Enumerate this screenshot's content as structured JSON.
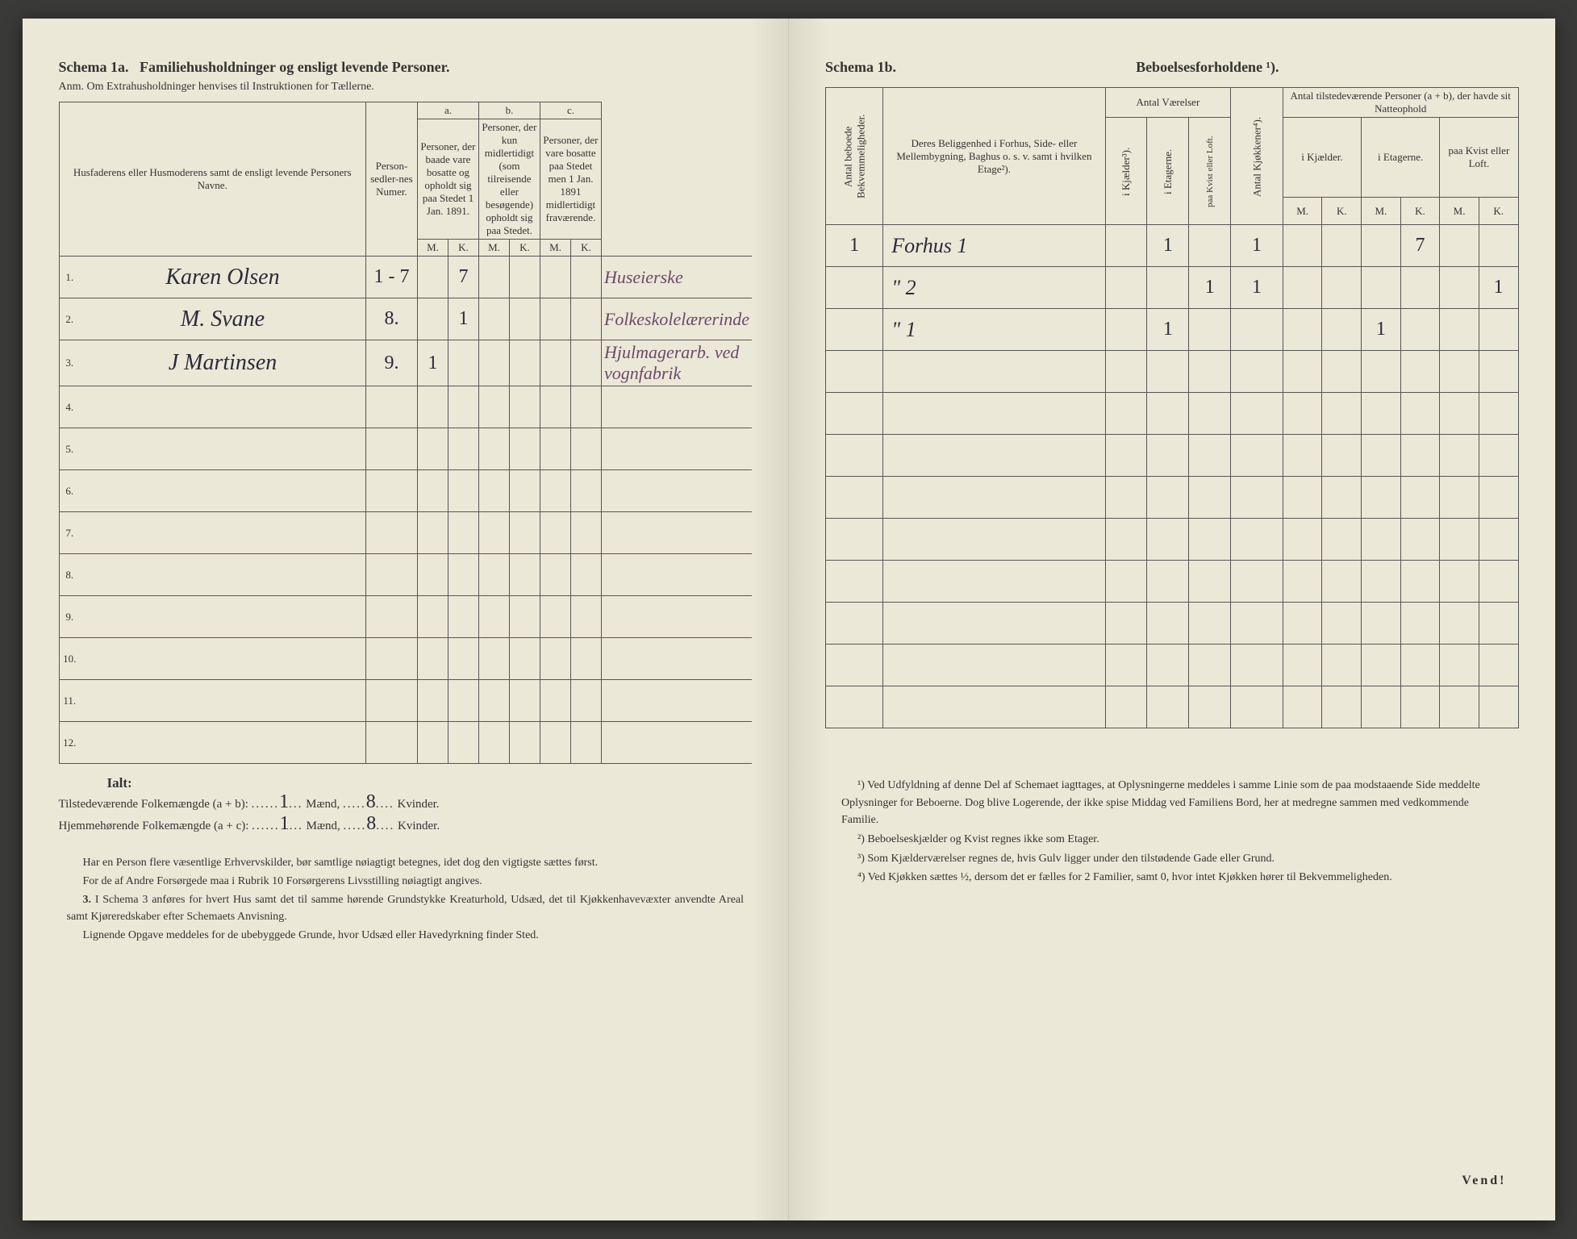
{
  "left": {
    "title_a": "Schema 1a.",
    "title_b": "Familiehusholdninger og ensligt levende Personer.",
    "anm": "Anm. Om Extrahusholdninger henvises til Instruktionen for Tællerne.",
    "col_name": "Husfaderens eller Husmoderens samt de ensligt levende Personers Navne.",
    "col_person": "Person-sedler-nes Numer.",
    "col_a_head": "a.",
    "col_a": "Personer, der baade vare bosatte og opholdt sig paa Stedet 1 Jan. 1891.",
    "col_b_head": "b.",
    "col_b": "Personer, der kun midlertidigt (som tilreisende eller besøgende) opholdt sig paa Stedet.",
    "col_c_head": "c.",
    "col_c": "Personer, der vare bosatte paa Stedet men 1 Jan. 1891 midlertidigt fraværende.",
    "mk_m": "M.",
    "mk_k": "K.",
    "rows": [
      {
        "n": "1.",
        "name": "Karen Olsen",
        "pers": "1 - 7",
        "am": "",
        "ak": "7",
        "bm": "",
        "bk": "",
        "cm": "",
        "ck": "",
        "note": "Huseierske"
      },
      {
        "n": "2.",
        "name": "M. Svane",
        "pers": "8.",
        "am": "",
        "ak": "1",
        "bm": "",
        "bk": "",
        "cm": "",
        "ck": "",
        "note": "Folkeskolelærerinde"
      },
      {
        "n": "3.",
        "name": "J Martinsen",
        "pers": "9.",
        "am": "1",
        "ak": "",
        "bm": "",
        "bk": "",
        "cm": "",
        "ck": "",
        "note": "Hjulmagerarb. ved vognfabrik"
      },
      {
        "n": "4."
      },
      {
        "n": "5."
      },
      {
        "n": "6."
      },
      {
        "n": "7."
      },
      {
        "n": "8."
      },
      {
        "n": "9."
      },
      {
        "n": "10."
      },
      {
        "n": "11."
      },
      {
        "n": "12."
      }
    ],
    "ialt": "Ialt:",
    "tilstede": "Tilstedeværende Folkemængde (a + b): ",
    "hjemme": "Hjemmehørende Folkemængde (a + c): ",
    "maend": "Mænd,",
    "kvinder": "Kvinder.",
    "val_tm": "1",
    "val_tk": "8",
    "val_hm": "1",
    "val_hk": "8",
    "note1": "Har en Person flere væsentlige Erhvervskilder, bør samtlige nøiagtigt betegnes, idet dog den vigtigste sættes først.",
    "note2": "For de af Andre Forsørgede maa i Rubrik 10 Forsørgerens Livsstilling nøiagtigt angives.",
    "note3_label": "3.",
    "note3": "I Schema 3 anføres for hvert Hus samt det til samme hørende Grundstykke Kreaturhold, Udsæd, det til Kjøkkenhavevæxter anvendte Areal samt Kjøreredskaber efter Schemaets Anvisning.",
    "note4": "Lignende Opgave meddeles for de ubebyggede Grunde, hvor Udsæd eller Havedyrkning finder Sted."
  },
  "right": {
    "title": "Schema 1b.",
    "title2": "Beboelsesforholdene ¹).",
    "col_bekv": "Antal beboede Bekvemmeligheder.",
    "col_belig": "Deres Beliggenhed i Forhus, Side- eller Mellembygning, Baghus o. s. v. samt i hvilken Etage²).",
    "col_vaer": "Antal Værelser",
    "col_kj": "i Kjælder³).",
    "col_et": "i Etagerne.",
    "col_kv": "paa Kvist eller Loft.",
    "col_kjok": "Antal Kjøkkener⁴).",
    "col_pers": "Antal tilstedeværende Personer (a + b), der havde sit Natteophold",
    "col_pk": "i Kjælder.",
    "col_pe": "i Etagerne.",
    "col_pkv": "paa Kvist eller Loft.",
    "mk_m": "M.",
    "mk_k": "K.",
    "rows": [
      {
        "bekv": "1",
        "belig": "Forhus   1",
        "kj": "",
        "et": "1",
        "kv": "",
        "kjok": "1",
        "pkm": "",
        "pkk": "",
        "pem": "",
        "pek": "7",
        "pkvm": "",
        "pkvk": ""
      },
      {
        "bekv": "",
        "belig": "\"          2",
        "kj": "",
        "et": "",
        "kv": "1",
        "kjok": "1",
        "pkm": "",
        "pkk": "",
        "pem": "",
        "pek": "",
        "pkvm": "",
        "pkvk": "1"
      },
      {
        "bekv": "",
        "belig": "\"          1",
        "kj": "",
        "et": "1",
        "kv": "",
        "kjok": "",
        "pkm": "",
        "pkk": "",
        "pem": "1",
        "pek": "",
        "pkvm": "",
        "pkvk": ""
      },
      {},
      {},
      {},
      {},
      {},
      {},
      {},
      {},
      {}
    ],
    "fn1": "¹) Ved Udfyldning af denne Del af Schemaet iagttages, at Oplysningerne meddeles i samme Linie som de paa modstaaende Side meddelte Oplysninger for Beboerne. Dog blive Logerende, der ikke spise Middag ved Familiens Bord, her at medregne sammen med vedkommende Familie.",
    "fn2": "²) Beboelseskjælder og Kvist regnes ikke som Etager.",
    "fn3": "³) Som Kjælderværelser regnes de, hvis Gulv ligger under den tilstødende Gade eller Grund.",
    "fn4": "⁴) Ved Kjøkken sættes ½, dersom det er fælles for 2 Familier, samt 0, hvor intet Kjøkken hører til Bekvemmeligheden.",
    "vend": "Vend!"
  }
}
